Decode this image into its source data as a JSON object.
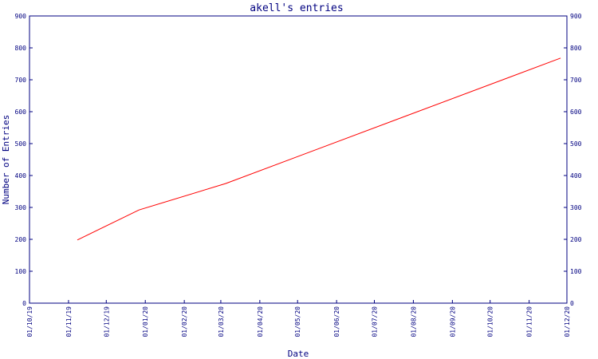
{
  "chart_data": {
    "type": "line",
    "title": "akell's entries",
    "xlabel": "Date",
    "ylabel": "Number of Entries",
    "x_ticks": [
      "01/10/19",
      "01/11/19",
      "01/12/19",
      "01/01/20",
      "01/02/20",
      "01/03/20",
      "01/04/20",
      "01/05/20",
      "01/06/20",
      "01/07/20",
      "01/08/20",
      "01/09/20",
      "01/10/20",
      "01/11/20",
      "01/12/20"
    ],
    "xlim": [
      "2019-10-01",
      "2020-12-01"
    ],
    "ylim": [
      0,
      900
    ],
    "y_ticks": [
      0,
      100,
      200,
      300,
      400,
      500,
      600,
      700,
      800,
      900
    ],
    "y_axis_both_sides": true,
    "grid": false,
    "colors": {
      "frame": "#000080",
      "line": "#ff0000",
      "text": "#000080"
    },
    "series": [
      {
        "values": [
          {
            "x": "2019-11-08",
            "y": 198
          },
          {
            "x": "2019-12-27",
            "y": 292
          },
          {
            "x": "2020-03-05",
            "y": 375
          },
          {
            "x": "2020-11-26",
            "y": 768
          }
        ]
      }
    ]
  }
}
